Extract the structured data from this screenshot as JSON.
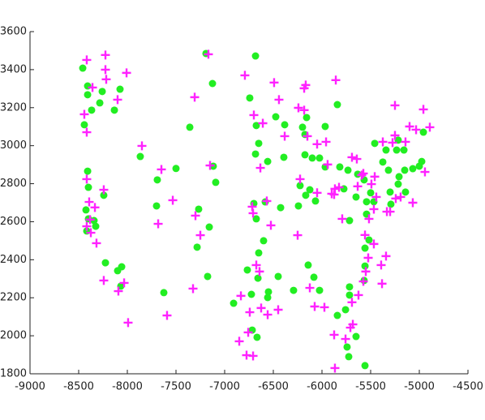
{
  "chart_data": {
    "type": "scatter",
    "xlim": [
      -9000,
      -4500
    ],
    "ylim": [
      1800,
      3600
    ],
    "xticks": [
      -9000,
      -8500,
      -8000,
      -7500,
      -7000,
      -6500,
      -6000,
      -5500,
      -5000,
      -4500
    ],
    "yticks": [
      1800,
      2000,
      2200,
      2400,
      2600,
      2800,
      3000,
      3200,
      3400,
      3600
    ],
    "series": [
      {
        "color": "#22ee22",
        "marker": "o",
        "x": [
          -8458,
          -8408,
          -8408,
          -8367,
          -8442,
          -8283,
          -8258,
          -8133,
          -8075,
          -8408,
          -8400,
          -8425,
          -8400,
          -8342,
          -8417,
          -8325,
          -8242,
          -8225,
          -8100,
          -8058,
          -8067,
          -7867,
          -7692,
          -7500,
          -7700,
          -7358,
          -7192,
          -7125,
          -7117,
          -7092,
          -7267,
          -7158,
          -7283,
          -7175,
          -7625,
          -6908,
          -6683,
          -6742,
          -6675,
          -6650,
          -6683,
          -6558,
          -6700,
          -6583,
          -6675,
          -6425,
          -6600,
          -6650,
          -6767,
          -6658,
          -6725,
          -6450,
          -6550,
          -6717,
          -6667,
          -6558,
          -6392,
          -6475,
          -6383,
          -6158,
          -6200,
          -6175,
          -5967,
          -5842,
          -6175,
          -6100,
          -6025,
          -5967,
          -6225,
          -6125,
          -6067,
          -6167,
          -6242,
          -6292,
          -6025,
          -6142,
          -6083,
          -5817,
          -5733,
          -5633,
          -5567,
          -5775,
          -5650,
          -5542,
          -5500,
          -5467,
          -5717,
          -5458,
          -5375,
          -5342,
          -5233,
          -5158,
          -5217,
          -5317,
          -5208,
          -5150,
          -5300,
          -5217,
          -5142,
          -5292,
          -5067,
          -4975,
          -4958,
          -5000,
          -5542,
          -5517,
          -5558,
          -5558,
          -5567,
          -5717,
          -5717,
          -5758,
          -5842,
          -5742,
          -5725,
          -5558,
          -5650
        ],
        "y": [
          3408,
          3268,
          3314,
          3187,
          3110,
          3225,
          3285,
          3187,
          3297,
          2866,
          2781,
          2662,
          2615,
          2606,
          2551,
          2576,
          2739,
          2384,
          2342,
          2363,
          2261,
          2943,
          2820,
          2880,
          2683,
          3097,
          3485,
          3327,
          2892,
          2807,
          2666,
          2572,
          2466,
          2312,
          2227,
          2171,
          3472,
          3251,
          3106,
          3012,
          2956,
          2917,
          2696,
          2704,
          2615,
          2674,
          2500,
          2436,
          2346,
          2303,
          2218,
          2312,
          2231,
          2030,
          1992,
          2201,
          2939,
          3152,
          3110,
          3148,
          3097,
          3059,
          3101,
          3216,
          2952,
          2935,
          2935,
          2888,
          2790,
          2768,
          2709,
          2739,
          2683,
          2239,
          2239,
          2372,
          2308,
          2888,
          2871,
          2850,
          2820,
          2773,
          2730,
          2705,
          2752,
          2705,
          2606,
          3012,
          2914,
          2977,
          2977,
          2977,
          3029,
          2871,
          2837,
          2871,
          2756,
          2798,
          2756,
          2692,
          2879,
          2917,
          3071,
          2892,
          2640,
          2504,
          2461,
          2367,
          2291,
          2257,
          2214,
          2137,
          2107,
          1941,
          1890,
          1843,
          1996
        ]
      },
      {
        "color": "#ff22ff",
        "marker": "+",
        "x": [
          -8417,
          -8358,
          -8442,
          -8417,
          -8225,
          -8225,
          -8217,
          -8100,
          -8008,
          -8417,
          -8392,
          -8242,
          -8333,
          -8383,
          -8417,
          -8375,
          -8317,
          -8242,
          -8033,
          -8092,
          -7992,
          -7850,
          -7650,
          -7683,
          -7533,
          -7592,
          -7308,
          -7300,
          -7250,
          -7325,
          -7167,
          -7150,
          -6792,
          -6700,
          -6608,
          -6633,
          -6717,
          -6708,
          -6567,
          -6525,
          -6675,
          -6642,
          -6833,
          -6625,
          -6742,
          -6558,
          -6450,
          -6850,
          -6775,
          -6708,
          -6758,
          -6492,
          -6442,
          -6383,
          -6225,
          -6250,
          -6125,
          -6075,
          -5975,
          -6183,
          -6167,
          -6242,
          -6183,
          -5958,
          -6050,
          -6150,
          -5942,
          -6050,
          -5858,
          -5867,
          -5825,
          -5900,
          -5875,
          -5792,
          -5875,
          -5758,
          -5708,
          -5683,
          -5867,
          -5692,
          -5642,
          -5592,
          -5633,
          -5575,
          -5458,
          -5492,
          -5517,
          -5467,
          -5442,
          -5558,
          -5525,
          -5550,
          -5575,
          -5625,
          -5692,
          -5375,
          -5250,
          -5250,
          -5275,
          -5142,
          -5100,
          -5033,
          -4958,
          -4892,
          -5067,
          -4942,
          -5192,
          -5242,
          -5333,
          -5300,
          -5467,
          -5392,
          -5342,
          -5383
        ],
        "y": [
          3451,
          3306,
          3165,
          3071,
          3477,
          3400,
          3349,
          3242,
          3383,
          2824,
          2704,
          2768,
          2675,
          2611,
          2576,
          2542,
          2487,
          2291,
          2278,
          2235,
          2069,
          2999,
          2875,
          2589,
          2713,
          2107,
          3255,
          2632,
          2529,
          2248,
          3481,
          2896,
          3370,
          3161,
          3118,
          2883,
          2679,
          2645,
          2709,
          2581,
          2372,
          2338,
          2210,
          2146,
          2124,
          2111,
          2137,
          1971,
          1898,
          1894,
          2018,
          3332,
          3242,
          3050,
          2824,
          2529,
          2252,
          2154,
          2150,
          3302,
          3319,
          3199,
          3187,
          3020,
          3008,
          3050,
          2901,
          2752,
          3345,
          2773,
          2781,
          2747,
          2743,
          2615,
          2005,
          1983,
          2043,
          2060,
          1830,
          2939,
          2930,
          2845,
          2786,
          2854,
          2837,
          2798,
          2615,
          2666,
          2730,
          2530,
          2410,
          2338,
          2286,
          2214,
          2176,
          3020,
          3212,
          3054,
          3016,
          3020,
          3101,
          3084,
          3191,
          3097,
          2700,
          2862,
          2730,
          2722,
          2653,
          2653,
          2483,
          2372,
          2419,
          2274
        ]
      }
    ]
  }
}
